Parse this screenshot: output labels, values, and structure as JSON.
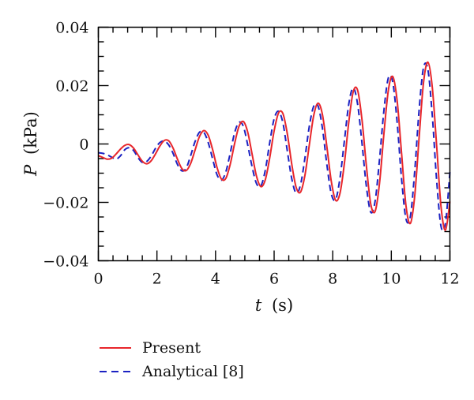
{
  "chart_data": {
    "type": "line",
    "title": "",
    "xlabel_var": "t",
    "xlabel_unit": "(s)",
    "ylabel_var": "P",
    "ylabel_unit": "(kPa)",
    "xlim": [
      0,
      12
    ],
    "ylim": [
      -0.04,
      0.04
    ],
    "x_ticks": [
      0,
      2,
      4,
      6,
      8,
      10,
      12
    ],
    "x_tick_labels": [
      "0",
      "2",
      "4",
      "6",
      "8",
      "10",
      "12"
    ],
    "y_ticks": [
      -0.04,
      -0.02,
      0,
      0.02,
      0.04
    ],
    "y_tick_labels": [
      "−0.04",
      "−0.02",
      "0",
      "0.02",
      "0.04"
    ],
    "grid": false,
    "legend_position": "below-plot",
    "series": [
      {
        "name": "Present",
        "color": "#e8262b",
        "style": "solid",
        "x": [
          0,
          0.15,
          0.3,
          0.45,
          0.6,
          0.75,
          0.9,
          1.05,
          1.2,
          1.35,
          1.5,
          1.65,
          1.8,
          1.95,
          2.1,
          2.25,
          2.4,
          2.55,
          2.7,
          2.85,
          3.0,
          3.15,
          3.3,
          3.45,
          3.6,
          3.75,
          3.9,
          4.05,
          4.2,
          4.35,
          4.5,
          4.65,
          4.8,
          4.95,
          5.1,
          5.25,
          5.4,
          5.55,
          5.7,
          5.85,
          6.0,
          6.15,
          6.3,
          6.45,
          6.6,
          6.75,
          6.9,
          7.05,
          7.2,
          7.35,
          7.5,
          7.65,
          7.8,
          7.95,
          8.1,
          8.25,
          8.4,
          8.55,
          8.7,
          8.85,
          9.0,
          9.15,
          9.3,
          9.45,
          9.6,
          9.75,
          9.9,
          10.05,
          10.2,
          10.35,
          10.5,
          10.65,
          10.8,
          10.95,
          11.1,
          11.25,
          11.4,
          11.55,
          11.7,
          11.85,
          12.0
        ],
        "y": [
          -0.004,
          -0.0046,
          -0.0052,
          -0.0049,
          -0.0035,
          -0.0018,
          -0.0005,
          -0.0002,
          -0.0014,
          -0.0037,
          -0.0059,
          -0.0068,
          -0.0058,
          -0.0034,
          -0.0007,
          0.0012,
          0.0011,
          -0.0014,
          -0.0052,
          -0.0084,
          -0.0091,
          -0.0067,
          -0.0021,
          0.0025,
          0.0046,
          0.003,
          -0.0019,
          -0.008,
          -0.012,
          -0.0118,
          -0.007,
          0.0001,
          0.006,
          0.0077,
          0.004,
          -0.0036,
          -0.0111,
          -0.0146,
          -0.0122,
          -0.0047,
          0.0045,
          0.0106,
          0.0104,
          0.0035,
          -0.0068,
          -0.0148,
          -0.0165,
          -0.0108,
          -0.0004,
          0.0097,
          0.014,
          0.01,
          -0.0009,
          -0.0127,
          -0.0193,
          -0.0168,
          -0.0065,
          0.0076,
          0.0179,
          0.0184,
          0.0082,
          -0.0076,
          -0.0207,
          -0.023,
          -0.0132,
          0.0038,
          0.0185,
          0.0231,
          0.0147,
          -0.0032,
          -0.0211,
          -0.0272,
          -0.0177,
          0.0023,
          0.0211,
          0.028,
          0.0193,
          -0.001,
          -0.0218,
          -0.0295,
          -0.0197
        ]
      },
      {
        "name": "Analytical [8]",
        "color": "#1c22c2",
        "style": "dashed",
        "x": [
          0,
          0.15,
          0.3,
          0.45,
          0.6,
          0.75,
          0.9,
          1.05,
          1.2,
          1.35,
          1.5,
          1.65,
          1.8,
          1.95,
          2.1,
          2.25,
          2.4,
          2.55,
          2.7,
          2.85,
          3.0,
          3.15,
          3.3,
          3.45,
          3.6,
          3.75,
          3.9,
          4.05,
          4.2,
          4.35,
          4.5,
          4.65,
          4.8,
          4.95,
          5.1,
          5.25,
          5.4,
          5.55,
          5.7,
          5.85,
          6.0,
          6.15,
          6.3,
          6.45,
          6.6,
          6.75,
          6.9,
          7.05,
          7.2,
          7.35,
          7.5,
          7.65,
          7.8,
          7.95,
          8.1,
          8.25,
          8.4,
          8.55,
          8.7,
          8.85,
          9.0,
          9.15,
          9.3,
          9.45,
          9.6,
          9.75,
          9.9,
          10.05,
          10.2,
          10.35,
          10.5,
          10.65,
          10.8,
          10.95,
          11.1,
          11.25,
          11.4,
          11.55,
          11.7,
          11.85,
          12.0
        ],
        "y": [
          -0.003,
          -0.0032,
          -0.0037,
          -0.0045,
          -0.0052,
          -0.0041,
          -0.002,
          -0.0013,
          -0.0022,
          -0.0046,
          -0.0063,
          -0.006,
          -0.0042,
          -0.0015,
          0.0005,
          0.001,
          -0.0003,
          -0.0032,
          -0.007,
          -0.0092,
          -0.0082,
          -0.004,
          0.0008,
          0.004,
          0.004,
          0.0005,
          -0.0051,
          -0.0105,
          -0.0124,
          -0.0096,
          -0.0032,
          0.0038,
          0.0074,
          0.006,
          -0.0004,
          -0.0079,
          -0.0136,
          -0.0143,
          -0.0089,
          0.0005,
          0.0086,
          0.0112,
          0.0072,
          -0.0024,
          -0.0118,
          -0.0168,
          -0.014,
          -0.0049,
          0.006,
          0.0129,
          0.013,
          0.0053,
          -0.007,
          -0.017,
          -0.019,
          -0.0115,
          0.0012,
          0.0138,
          0.0192,
          0.0136,
          0.0002,
          -0.0146,
          -0.0234,
          -0.0194,
          -0.005,
          0.0117,
          0.0227,
          0.0211,
          0.0073,
          -0.0119,
          -0.0256,
          -0.0248,
          -0.0092,
          0.0118,
          0.0262,
          0.0254,
          0.0096,
          -0.0128,
          -0.0284,
          -0.027,
          -0.0096
        ]
      }
    ]
  }
}
